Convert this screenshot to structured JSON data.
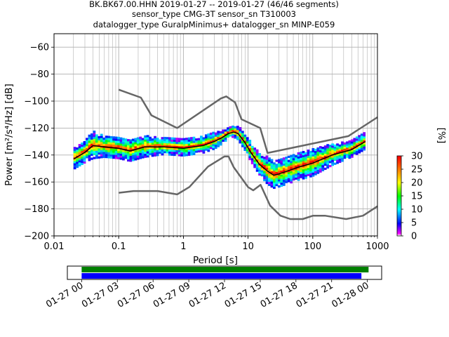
{
  "title": {
    "line1": "BK.BK67.00.HHN   2019-01-27 -- 2019-01-27  (46/46 segments)",
    "line2": "sensor_type CMG-3T sensor_sn T310003",
    "line3": "datalogger_type GuralpMinimus+ datalogger_sn MINP-E059"
  },
  "chart_data": [
    {
      "type": "heatmap",
      "subtype": "probabilistic-power-spectral-density",
      "xlabel": "Period [s]",
      "ylabel": "Power [m²/s⁴/Hz] [dB]",
      "xscale": "log",
      "xlim": [
        0.01,
        1000
      ],
      "ylim": [
        -200,
        -50
      ],
      "x_ticks": [
        0.01,
        0.1,
        1,
        10,
        100,
        1000
      ],
      "x_tick_labels": [
        "0.01",
        "0.1",
        "1",
        "10",
        "100",
        "1000"
      ],
      "y_ticks": [
        -200,
        -180,
        -160,
        -140,
        -120,
        -100,
        -80,
        -60
      ],
      "y_tick_labels": [
        "−200",
        "−180",
        "−160",
        "−140",
        "−120",
        "−100",
        "−80",
        "−60"
      ],
      "grid": true,
      "colorbar": {
        "label": "[%]",
        "range": [
          0,
          30
        ],
        "ticks": [
          0,
          5,
          10,
          15,
          20,
          25,
          30
        ],
        "tick_labels": [
          "0",
          "5",
          "10",
          "15",
          "20",
          "25",
          "30"
        ],
        "colormap": "pqlx"
      },
      "nhnm": {
        "period": [
          0.1,
          0.22,
          0.32,
          0.8,
          3.8,
          4.6,
          6.3,
          7.9,
          15.4,
          20,
          354.8,
          1000
        ],
        "db": [
          -91.5,
          -97.4,
          -110.5,
          -120,
          -98,
          -96.5,
          -101,
          -113.5,
          -120,
          -138.5,
          -126,
          -112
        ]
      },
      "nlnm": {
        "period": [
          0.1,
          0.17,
          0.4,
          0.8,
          1.24,
          2.4,
          4.3,
          5,
          6,
          10,
          12,
          15.6,
          21.9,
          31.6,
          45,
          70,
          101,
          154,
          328,
          600,
          1000
        ],
        "db": [
          -168,
          -166.7,
          -166.7,
          -169.2,
          -163.7,
          -148.6,
          -141.1,
          -141.1,
          -149,
          -163.8,
          -166.2,
          -162.1,
          -177.5,
          -185,
          -187.5,
          -187.5,
          -185,
          -185,
          -187.5,
          -185,
          -178
        ]
      },
      "mode": {
        "period": [
          0.02,
          0.03,
          0.04,
          0.06,
          0.1,
          0.15,
          0.25,
          0.5,
          1,
          2,
          3,
          4,
          5,
          6,
          7,
          9,
          11,
          15,
          20,
          25,
          30,
          40,
          60,
          100,
          200,
          400,
          650
        ],
        "db": [
          -143,
          -138,
          -133,
          -134,
          -135,
          -137,
          -134,
          -134,
          -135,
          -133,
          -130,
          -127,
          -124,
          -123,
          -124,
          -131,
          -138,
          -147,
          -152,
          -155,
          -154,
          -152,
          -149,
          -146,
          -140,
          -136,
          -130
        ]
      },
      "band_width_db": [
        8,
        8,
        10,
        8,
        8,
        8,
        8,
        6,
        6,
        6,
        6,
        5,
        4,
        4,
        5,
        6,
        7,
        8,
        10,
        10,
        10,
        10,
        10,
        10,
        8,
        6,
        6
      ]
    },
    {
      "type": "bar",
      "subtype": "data-coverage-timeline",
      "x_tick_labels": [
        "01-27 00",
        "01-27 03",
        "01-27 06",
        "01-27 09",
        "01-27 12",
        "01-27 15",
        "01-27 18",
        "01-27 21",
        "01-28 00"
      ],
      "x_range_hours": [
        -1.2,
        25.2
      ],
      "series": [
        {
          "color": "#008000",
          "start_hour": 0,
          "end_hour": 24.1
        },
        {
          "color": "#0000ff",
          "start_hour": 0,
          "end_hour": 23.5
        }
      ]
    }
  ],
  "colors": {
    "noise_model": "#666666",
    "mode_line": "#000000",
    "grid": "#b0b0b0"
  }
}
